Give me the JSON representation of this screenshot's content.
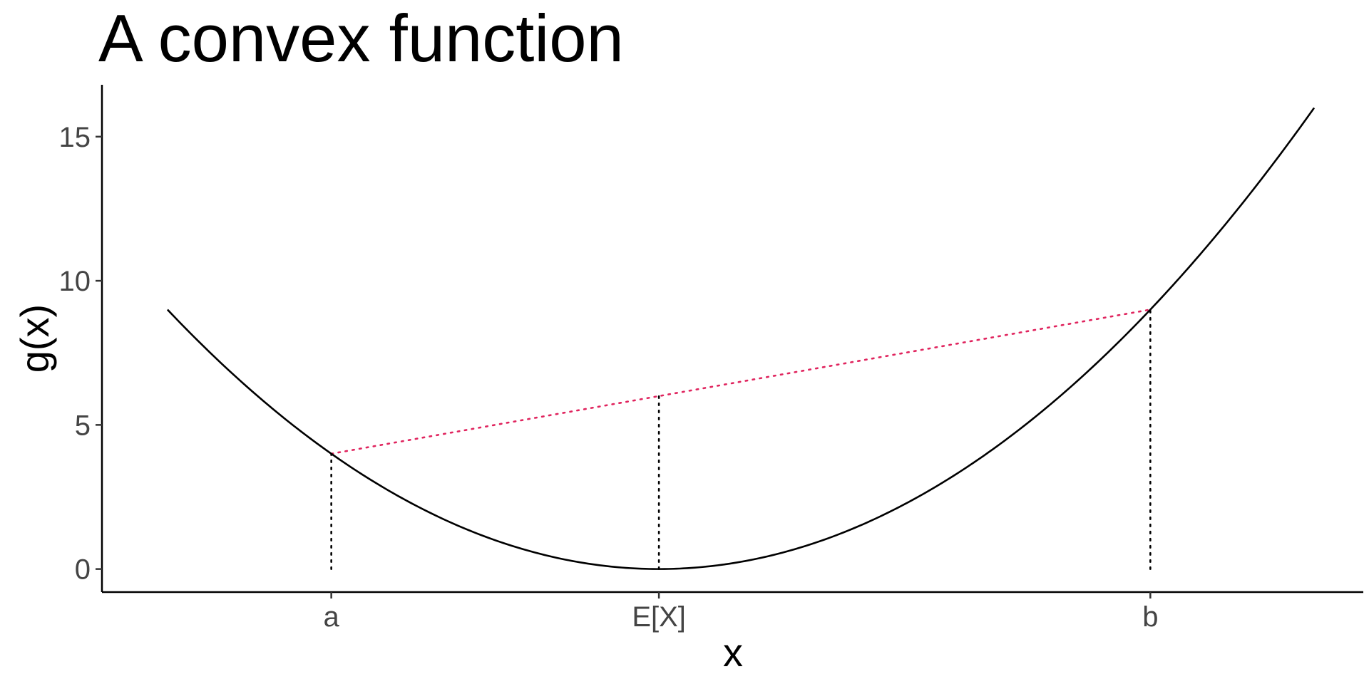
{
  "chart_data": {
    "type": "line",
    "title": "A convex function",
    "xlabel": "x",
    "ylabel": "g(x)",
    "xlim": [
      -3.4,
      4.3
    ],
    "ylim": [
      -0.8,
      16.8
    ],
    "function": "(x - 0)^2",
    "series": [
      {
        "x": [
          -3,
          -2.5,
          -2,
          -1.5,
          -1,
          -0.5,
          0,
          0.5,
          1,
          1.5,
          2,
          2.5,
          3,
          3.5,
          4
        ],
        "y": [
          9,
          6.25,
          4,
          2.25,
          1,
          0.25,
          0,
          0.25,
          1,
          2.25,
          4,
          6.25,
          9,
          12.25,
          16
        ]
      }
    ],
    "x_ticks": [
      {
        "value": -2,
        "label": "a"
      },
      {
        "value": 0,
        "label": "E[X]"
      },
      {
        "value": 3,
        "label": "b"
      }
    ],
    "y_ticks": [
      {
        "value": 0,
        "label": "0"
      },
      {
        "value": 5,
        "label": "5"
      },
      {
        "value": 10,
        "label": "10"
      },
      {
        "value": 15,
        "label": "15"
      }
    ],
    "chord": {
      "x": [
        -2,
        3
      ],
      "y": [
        4,
        9
      ],
      "color": "#e0245e"
    },
    "guides": [
      {
        "x": -2,
        "y_from": 0,
        "y_to": 4
      },
      {
        "x": 0,
        "y_from": 0,
        "y_to": 6
      },
      {
        "x": 3,
        "y_from": 0,
        "y_to": 9
      }
    ],
    "grid": false,
    "colors": {
      "curve": "#000000",
      "chord": "#e0245e",
      "guide": "#000000"
    }
  }
}
